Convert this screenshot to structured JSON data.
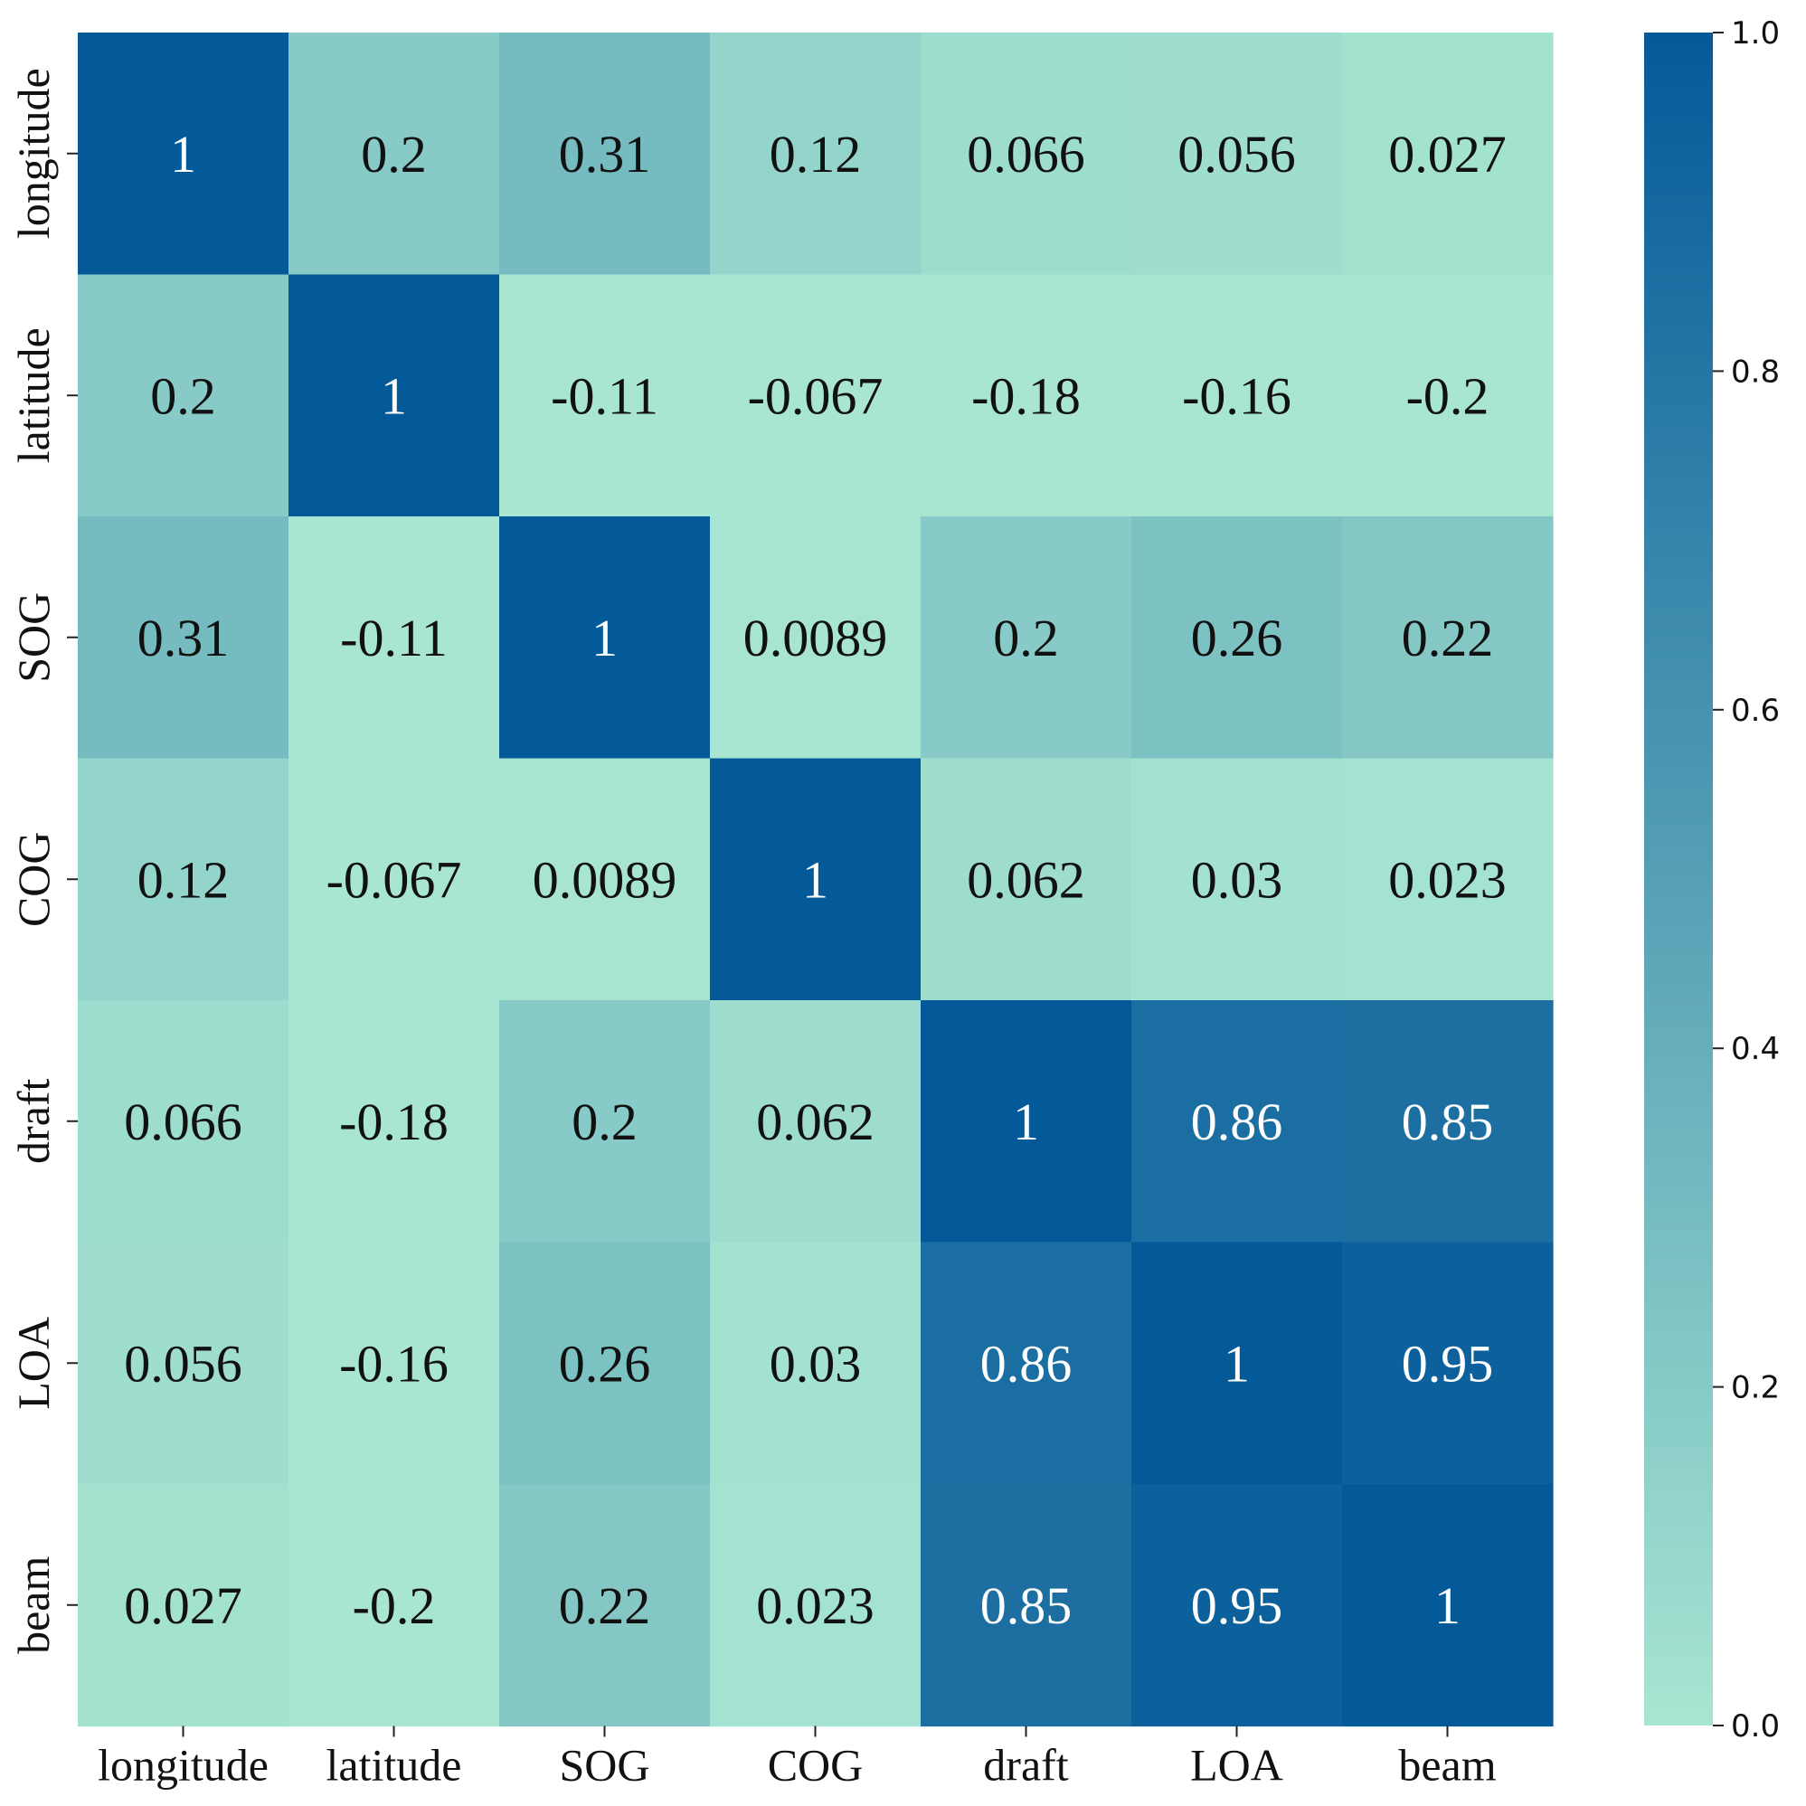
{
  "chart_data": {
    "type": "heatmap",
    "x_labels": [
      "longitude",
      "latitude",
      "SOG",
      "COG",
      "draft",
      "LOA",
      "beam"
    ],
    "y_labels": [
      "longitude",
      "latitude",
      "SOG",
      "COG",
      "draft",
      "LOA",
      "beam"
    ],
    "values": [
      [
        1,
        0.2,
        0.31,
        0.12,
        0.066,
        0.056,
        0.027
      ],
      [
        0.2,
        1,
        -0.11,
        -0.067,
        -0.18,
        -0.16,
        -0.2
      ],
      [
        0.31,
        -0.11,
        1,
        0.0089,
        0.2,
        0.26,
        0.22
      ],
      [
        0.12,
        -0.067,
        0.0089,
        1,
        0.062,
        0.03,
        0.023
      ],
      [
        0.066,
        -0.18,
        0.2,
        0.062,
        1,
        0.86,
        0.85
      ],
      [
        0.056,
        -0.16,
        0.26,
        0.03,
        0.86,
        1,
        0.95
      ],
      [
        0.027,
        -0.2,
        0.22,
        0.023,
        0.85,
        0.95,
        1
      ]
    ],
    "annotations": [
      [
        "1",
        "0.2",
        "0.31",
        "0.12",
        "0.066",
        "0.056",
        "0.027"
      ],
      [
        "0.2",
        "1",
        "-0.11",
        "-0.067",
        "-0.18",
        "-0.16",
        "-0.2"
      ],
      [
        "0.31",
        "-0.11",
        "1",
        "0.0089",
        "0.2",
        "0.26",
        "0.22"
      ],
      [
        "0.12",
        "-0.067",
        "0.0089",
        "1",
        "0.062",
        "0.03",
        "0.023"
      ],
      [
        "0.066",
        "-0.18",
        "0.2",
        "0.062",
        "1",
        "0.86",
        "0.85"
      ],
      [
        "0.056",
        "-0.16",
        "0.26",
        "0.03",
        "0.86",
        "1",
        "0.95"
      ],
      [
        "0.027",
        "-0.2",
        "0.22",
        "0.023",
        "0.85",
        "0.95",
        "1"
      ]
    ],
    "colorbar": {
      "vmin": 0.0,
      "vmax": 1.0,
      "ticks": [
        0.0,
        0.2,
        0.4,
        0.6,
        0.8,
        1.0
      ],
      "tick_labels": [
        "0.0",
        "0.2",
        "0.4",
        "0.6",
        "0.8",
        "1.0"
      ],
      "color_low": "#a8e6d2",
      "color_high": "#045a99"
    },
    "text_color_dark": "#111111",
    "text_color_light": "#ffffff"
  }
}
